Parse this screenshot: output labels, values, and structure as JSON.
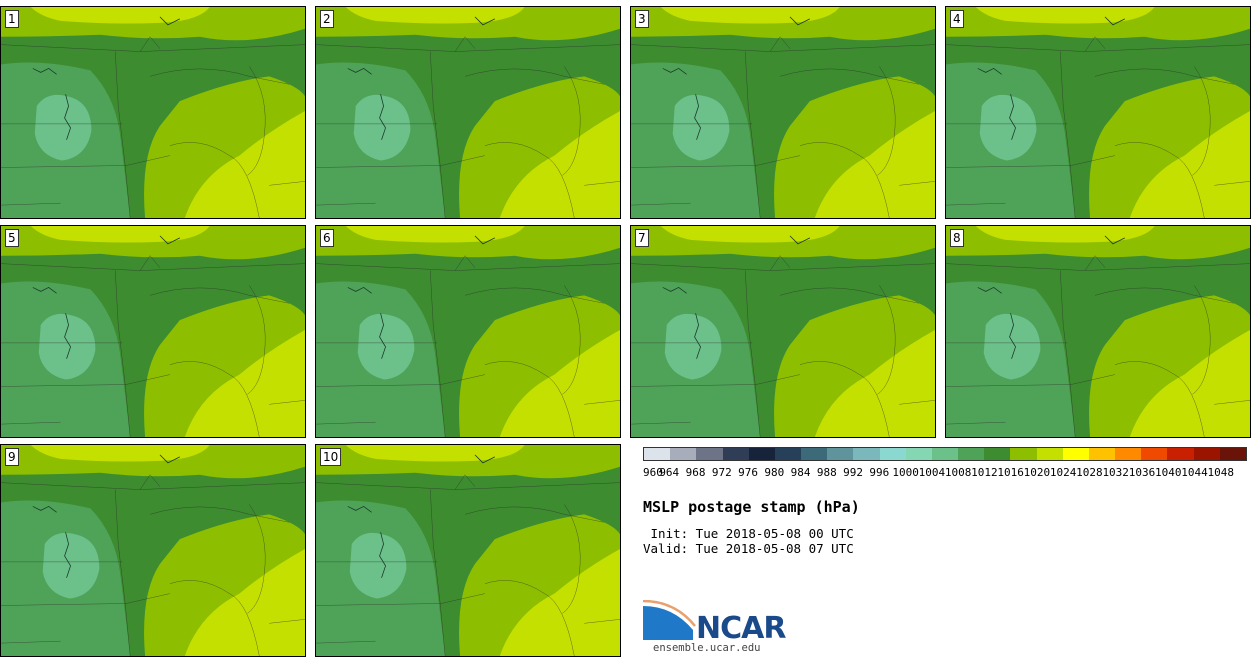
{
  "title": "MSLP postage stamp (hPa)",
  "init": " Init: Tue 2018-05-08 00 UTC",
  "valid": "Valid: Tue 2018-05-08 07 UTC",
  "logo": {
    "text": "NCAR",
    "url": "ensemble.ucar.edu"
  },
  "members": [
    "1",
    "2",
    "3",
    "4",
    "5",
    "6",
    "7",
    "8",
    "9",
    "10"
  ],
  "colorbar": {
    "ticks": [
      "960",
      "964",
      "968",
      "972",
      "976",
      "980",
      "984",
      "988",
      "992",
      "996",
      "1000",
      "1004",
      "1008",
      "1012",
      "1016",
      "1020",
      "1024",
      "1028",
      "1032",
      "1036",
      "1040",
      "1044",
      "1048"
    ],
    "colors": [
      "#dde3ea",
      "#a8adbb",
      "#6e7488",
      "#2f3d57",
      "#16233a",
      "#26405a",
      "#3c6a78",
      "#5f949d",
      "#7ab8bb",
      "#8ad8d0",
      "#85d6b3",
      "#6cc08a",
      "#4fa358",
      "#3d8c30",
      "#8dbf00",
      "#c4e000",
      "#ffff00",
      "#ffc200",
      "#ff8a00",
      "#f04a00",
      "#c82000",
      "#9a1400",
      "#6a1308"
    ]
  },
  "map_colors": {
    "low": "#6cc08a",
    "mid_low": "#4fa358",
    "mid": "#3d8c30",
    "mid_high": "#8dbf00",
    "high": "#c4e000"
  }
}
